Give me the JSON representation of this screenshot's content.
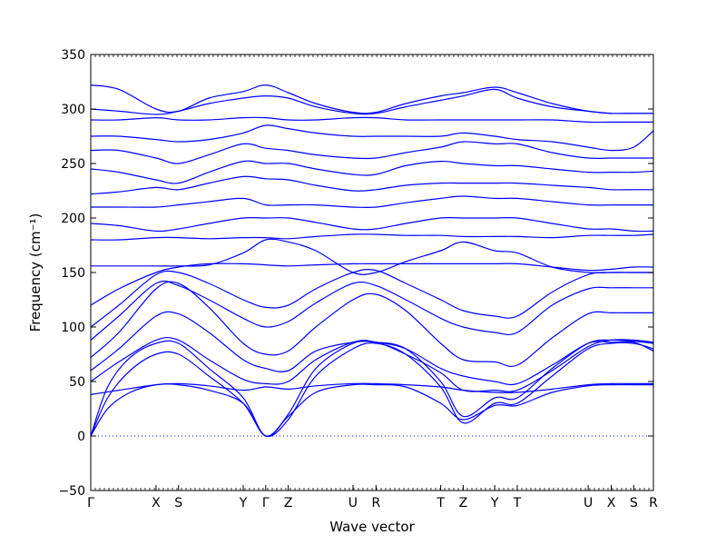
{
  "chart_data": {
    "type": "line",
    "title": "",
    "xlabel": "Wave vector",
    "ylabel": "Frequency (cm⁻¹)",
    "ylim": [
      -50,
      350
    ],
    "yticks": [
      "−50",
      "0",
      "50",
      "100",
      "150",
      "200",
      "250",
      "300",
      "350"
    ],
    "ytick_values": [
      -50,
      0,
      50,
      100,
      150,
      200,
      250,
      300,
      350
    ],
    "xlim": [
      0,
      1
    ],
    "xticks": [
      {
        "label": "Γ",
        "x": 0.0
      },
      {
        "label": "X",
        "x": 0.116
      },
      {
        "label": "S",
        "x": 0.156
      },
      {
        "label": "Y",
        "x": 0.271
      },
      {
        "label": "Γ",
        "x": 0.311
      },
      {
        "label": "Z",
        "x": 0.351
      },
      {
        "label": "U",
        "x": 0.466
      },
      {
        "label": "R",
        "x": 0.507
      },
      {
        "label": "T",
        "x": 0.622
      },
      {
        "label": "Z",
        "x": 0.662
      },
      {
        "label": "Y",
        "x": 0.718
      },
      {
        "label": "T",
        "x": 0.758
      },
      {
        "label": "U",
        "x": 0.884
      },
      {
        "label": "X",
        "x": 0.925
      },
      {
        "label": "S",
        "x": 0.965
      },
      {
        "label": "R",
        "x": 1.0
      }
    ],
    "zero_line": {
      "y": 0,
      "style": "dotted"
    },
    "line_color": "#0000ff",
    "series": [
      {
        "x": [
          0,
          0.03,
          0.07,
          0.116,
          0.156,
          0.21,
          0.271,
          0.311,
          0.351,
          0.4,
          0.466,
          0.507,
          0.56,
          0.622,
          0.662,
          0.718,
          0.758,
          0.82,
          0.884,
          0.925,
          0.965,
          1.0
        ],
        "y": [
          0,
          25,
          40,
          47,
          47,
          42,
          30,
          0,
          18,
          40,
          47,
          47,
          45,
          30,
          15,
          28,
          28,
          40,
          46,
          47,
          47,
          47
        ]
      },
      {
        "x": [
          0,
          0.03,
          0.07,
          0.116,
          0.156,
          0.21,
          0.271,
          0.311,
          0.351,
          0.4,
          0.466,
          0.507,
          0.56,
          0.622,
          0.662,
          0.718,
          0.758,
          0.82,
          0.884,
          0.925,
          0.965,
          1.0
        ],
        "y": [
          0,
          35,
          60,
          75,
          75,
          55,
          30,
          0,
          15,
          55,
          80,
          85,
          75,
          45,
          12,
          30,
          30,
          55,
          80,
          85,
          85,
          80
        ]
      },
      {
        "x": [
          0,
          0.03,
          0.07,
          0.116,
          0.156,
          0.21,
          0.271,
          0.311,
          0.351,
          0.4,
          0.466,
          0.507,
          0.56,
          0.622,
          0.662,
          0.718,
          0.758,
          0.82,
          0.884,
          0.925,
          0.965,
          1.0
        ],
        "y": [
          0,
          45,
          72,
          85,
          85,
          62,
          35,
          0,
          20,
          62,
          85,
          86,
          80,
          50,
          18,
          35,
          35,
          62,
          85,
          88,
          87,
          85
        ]
      },
      {
        "x": [
          0,
          0.05,
          0.116,
          0.156,
          0.21,
          0.271,
          0.311,
          0.351,
          0.4,
          0.466,
          0.507,
          0.56,
          0.622,
          0.662,
          0.718,
          0.758,
          0.82,
          0.884,
          0.925,
          0.965,
          1.0
        ],
        "y": [
          38,
          42,
          47,
          48,
          46,
          42,
          45,
          43,
          46,
          48,
          48,
          47,
          45,
          42,
          40,
          40,
          43,
          47,
          48,
          48,
          48
        ]
      },
      {
        "x": [
          0,
          0.05,
          0.116,
          0.156,
          0.21,
          0.271,
          0.311,
          0.351,
          0.4,
          0.466,
          0.507,
          0.56,
          0.622,
          0.662,
          0.718,
          0.758,
          0.82,
          0.884,
          0.925,
          0.965,
          1.0
        ],
        "y": [
          50,
          68,
          88,
          88,
          70,
          52,
          48,
          50,
          70,
          86,
          86,
          75,
          58,
          42,
          42,
          42,
          60,
          82,
          88,
          88,
          86
        ]
      },
      {
        "x": [
          0,
          0.05,
          0.116,
          0.156,
          0.21,
          0.271,
          0.311,
          0.351,
          0.4,
          0.466,
          0.507,
          0.56,
          0.622,
          0.662,
          0.718,
          0.758,
          0.82,
          0.884,
          0.925,
          0.965,
          1.0
        ],
        "y": [
          60,
          80,
          110,
          112,
          95,
          70,
          62,
          60,
          78,
          86,
          86,
          80,
          62,
          55,
          50,
          48,
          65,
          85,
          86,
          86,
          78
        ]
      },
      {
        "x": [
          0,
          0.05,
          0.116,
          0.156,
          0.21,
          0.271,
          0.311,
          0.351,
          0.4,
          0.466,
          0.507,
          0.56,
          0.622,
          0.662,
          0.718,
          0.758,
          0.82,
          0.884,
          0.925,
          0.965,
          1.0
        ],
        "y": [
          72,
          95,
          135,
          140,
          118,
          85,
          75,
          78,
          100,
          125,
          130,
          115,
          85,
          70,
          68,
          65,
          90,
          112,
          113,
          113,
          113
        ]
      },
      {
        "x": [
          0,
          0.05,
          0.116,
          0.156,
          0.21,
          0.271,
          0.311,
          0.351,
          0.4,
          0.466,
          0.507,
          0.56,
          0.622,
          0.662,
          0.718,
          0.758,
          0.82,
          0.884,
          0.925,
          0.965,
          1.0
        ],
        "y": [
          88,
          110,
          140,
          138,
          125,
          108,
          100,
          105,
          122,
          140,
          138,
          125,
          108,
          100,
          95,
          95,
          120,
          135,
          136,
          136,
          136
        ]
      },
      {
        "x": [
          0,
          0.05,
          0.116,
          0.156,
          0.21,
          0.271,
          0.311,
          0.351,
          0.4,
          0.466,
          0.507,
          0.56,
          0.622,
          0.662,
          0.718,
          0.758,
          0.82,
          0.884,
          0.925,
          0.965,
          1.0
        ],
        "y": [
          100,
          120,
          148,
          150,
          140,
          125,
          118,
          120,
          135,
          150,
          152,
          140,
          125,
          115,
          110,
          110,
          132,
          148,
          150,
          150,
          150
        ]
      },
      {
        "x": [
          0,
          0.05,
          0.116,
          0.156,
          0.21,
          0.271,
          0.311,
          0.351,
          0.4,
          0.466,
          0.507,
          0.56,
          0.622,
          0.662,
          0.718,
          0.758,
          0.82,
          0.884,
          0.925,
          0.965,
          1.0
        ],
        "y": [
          120,
          135,
          150,
          155,
          158,
          158,
          157,
          156,
          157,
          158,
          158,
          158,
          158,
          158,
          158,
          158,
          155,
          152,
          153,
          155,
          155
        ]
      },
      {
        "x": [
          0,
          0.05,
          0.116,
          0.156,
          0.21,
          0.271,
          0.311,
          0.351,
          0.4,
          0.466,
          0.507,
          0.56,
          0.622,
          0.662,
          0.718,
          0.758,
          0.82,
          0.884,
          0.925,
          0.965,
          1.0
        ],
        "y": [
          156,
          156,
          156,
          156,
          157,
          168,
          180,
          178,
          170,
          150,
          150,
          160,
          170,
          178,
          170,
          168,
          155,
          150,
          150,
          150,
          150
        ]
      },
      {
        "x": [
          0,
          0.05,
          0.116,
          0.156,
          0.21,
          0.271,
          0.311,
          0.351,
          0.4,
          0.466,
          0.507,
          0.56,
          0.622,
          0.662,
          0.718,
          0.758,
          0.82,
          0.884,
          0.925,
          0.965,
          1.0
        ],
        "y": [
          180,
          180,
          182,
          182,
          181,
          182,
          182,
          181,
          183,
          185,
          185,
          184,
          184,
          183,
          183,
          183,
          182,
          184,
          184,
          184,
          185
        ]
      },
      {
        "x": [
          0,
          0.05,
          0.116,
          0.156,
          0.21,
          0.271,
          0.311,
          0.351,
          0.4,
          0.466,
          0.507,
          0.56,
          0.622,
          0.662,
          0.718,
          0.758,
          0.82,
          0.884,
          0.925,
          0.965,
          1.0
        ],
        "y": [
          195,
          193,
          188,
          190,
          195,
          200,
          200,
          200,
          196,
          190,
          190,
          195,
          200,
          200,
          200,
          200,
          195,
          190,
          190,
          188,
          188
        ]
      },
      {
        "x": [
          0,
          0.05,
          0.116,
          0.156,
          0.21,
          0.271,
          0.311,
          0.351,
          0.4,
          0.466,
          0.507,
          0.56,
          0.622,
          0.662,
          0.718,
          0.758,
          0.82,
          0.884,
          0.925,
          0.965,
          1.0
        ],
        "y": [
          210,
          210,
          210,
          212,
          215,
          218,
          212,
          212,
          212,
          210,
          210,
          214,
          218,
          220,
          218,
          218,
          215,
          212,
          212,
          212,
          212
        ]
      },
      {
        "x": [
          0,
          0.05,
          0.116,
          0.156,
          0.21,
          0.271,
          0.311,
          0.351,
          0.4,
          0.466,
          0.507,
          0.56,
          0.622,
          0.662,
          0.718,
          0.758,
          0.82,
          0.884,
          0.925,
          0.965,
          1.0
        ],
        "y": [
          222,
          224,
          228,
          226,
          232,
          238,
          236,
          235,
          230,
          225,
          226,
          230,
          232,
          232,
          232,
          232,
          230,
          228,
          226,
          226,
          226
        ]
      },
      {
        "x": [
          0,
          0.05,
          0.116,
          0.156,
          0.21,
          0.271,
          0.311,
          0.351,
          0.4,
          0.466,
          0.507,
          0.56,
          0.622,
          0.662,
          0.718,
          0.758,
          0.82,
          0.884,
          0.925,
          0.965,
          1.0
        ],
        "y": [
          245,
          242,
          235,
          232,
          242,
          252,
          250,
          250,
          245,
          240,
          240,
          248,
          252,
          250,
          248,
          248,
          245,
          242,
          242,
          242,
          243
        ]
      },
      {
        "x": [
          0,
          0.05,
          0.116,
          0.156,
          0.21,
          0.271,
          0.311,
          0.351,
          0.4,
          0.466,
          0.507,
          0.56,
          0.622,
          0.662,
          0.718,
          0.758,
          0.82,
          0.884,
          0.925,
          0.965,
          1.0
        ],
        "y": [
          262,
          262,
          255,
          250,
          258,
          268,
          264,
          262,
          258,
          255,
          255,
          260,
          265,
          270,
          268,
          268,
          260,
          255,
          255,
          255,
          255
        ]
      },
      {
        "x": [
          0,
          0.05,
          0.116,
          0.156,
          0.21,
          0.271,
          0.311,
          0.351,
          0.4,
          0.466,
          0.507,
          0.56,
          0.622,
          0.662,
          0.718,
          0.758,
          0.82,
          0.884,
          0.925,
          0.965,
          1.0
        ],
        "y": [
          275,
          275,
          272,
          270,
          272,
          278,
          285,
          282,
          278,
          275,
          275,
          275,
          275,
          278,
          275,
          272,
          270,
          265,
          262,
          265,
          280
        ]
      },
      {
        "x": [
          0,
          0.05,
          0.116,
          0.156,
          0.21,
          0.271,
          0.311,
          0.351,
          0.4,
          0.466,
          0.507,
          0.56,
          0.622,
          0.662,
          0.718,
          0.758,
          0.82,
          0.884,
          0.925,
          0.965,
          1.0
        ],
        "y": [
          290,
          290,
          292,
          290,
          290,
          292,
          292,
          290,
          290,
          292,
          292,
          290,
          290,
          290,
          290,
          290,
          290,
          288,
          288,
          288,
          288
        ]
      },
      {
        "x": [
          0,
          0.05,
          0.116,
          0.156,
          0.21,
          0.271,
          0.311,
          0.351,
          0.4,
          0.466,
          0.507,
          0.56,
          0.622,
          0.662,
          0.718,
          0.758,
          0.82,
          0.884,
          0.925,
          0.965,
          1.0
        ],
        "y": [
          300,
          298,
          295,
          298,
          305,
          310,
          312,
          310,
          302,
          296,
          296,
          302,
          308,
          312,
          318,
          310,
          302,
          298,
          296,
          296,
          296
        ]
      },
      {
        "x": [
          0,
          0.05,
          0.116,
          0.156,
          0.21,
          0.271,
          0.311,
          0.351,
          0.4,
          0.466,
          0.507,
          0.56,
          0.622,
          0.662,
          0.718,
          0.758,
          0.82,
          0.884,
          0.925,
          0.965,
          1.0
        ],
        "y": [
          322,
          318,
          300,
          298,
          310,
          316,
          322,
          315,
          305,
          297,
          297,
          305,
          312,
          315,
          320,
          315,
          305,
          298,
          296,
          296,
          296
        ]
      }
    ]
  }
}
